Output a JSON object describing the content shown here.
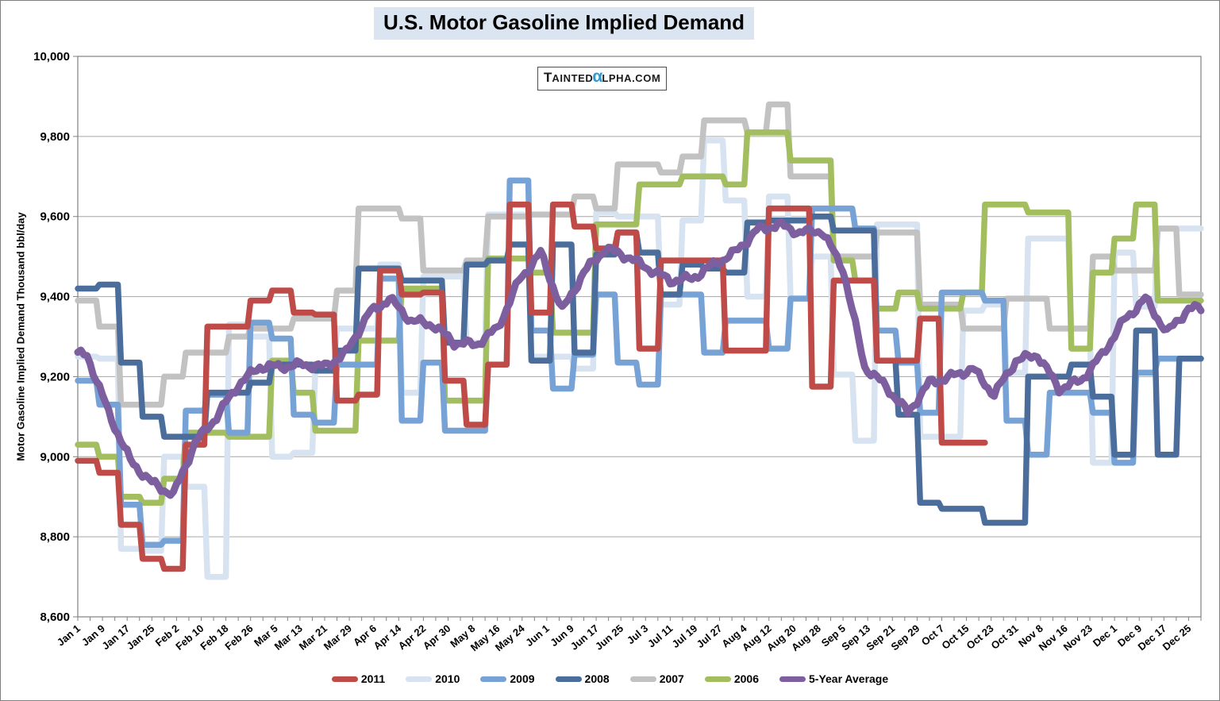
{
  "title": "U.S. Motor Gasoline Implied Demand",
  "watermark": {
    "t": "T",
    "ainted": "AINTED",
    "alpha": "α",
    "rest": "LPHA.COM"
  },
  "y_axis": {
    "title": "Motor Gasoline Implied Demand Thousand bbl/day",
    "tick_labels": [
      "10,000",
      "9,800",
      "9,600",
      "9,400",
      "9,200",
      "9,000",
      "8,800",
      "8,600"
    ],
    "max": 10000,
    "min": 8600,
    "step": 200
  },
  "x_axis": {
    "tick_labels": [
      "Jan 1",
      "Jan 9",
      "Jan 17",
      "Jan 25",
      "Feb 2",
      "Feb 10",
      "Feb 18",
      "Feb 26",
      "Mar 5",
      "Mar 13",
      "Mar 21",
      "Mar 29",
      "Apr 6",
      "Apr 14",
      "Apr 22",
      "Apr 30",
      "May 8",
      "May 16",
      "May 24",
      "Jun 1",
      "Jun 9",
      "Jun 17",
      "Jun 25",
      "Jul 3",
      "Jul 11",
      "Jul 19",
      "Jul 27",
      "Aug 4",
      "Aug 12",
      "Aug 20",
      "Aug 28",
      "Sep 5",
      "Sep 13",
      "Sep 21",
      "Sep 29",
      "Oct 7",
      "Oct 15",
      "Oct 23",
      "Oct 31",
      "Nov 8",
      "Nov 16",
      "Nov 23",
      "Dec 1",
      "Dec 9",
      "Dec 17",
      "Dec 25"
    ],
    "label_interval_days": 8,
    "minor_tick_interval_days": 4
  },
  "colors": {
    "grid": "#a6a6a6",
    "frame": "#808080",
    "title_bg": "#dbe5f1",
    "watermark_alpha": "#2f97d4"
  },
  "chart_data": {
    "type": "line",
    "title": "U.S. Motor Gasoline Implied Demand",
    "ylabel": "Motor Gasoline Implied Demand Thousand bbl/day",
    "ylim": [
      8600,
      10000
    ],
    "grid": "horizontal",
    "legend_position": "bottom",
    "x_description": "Days Jan 1 - Dec 31; weekly values held constant (step lines), estimated from pixels",
    "draw_order": [
      "2010",
      "2007",
      "2006",
      "2009",
      "2008",
      "2011",
      "5-Year Average"
    ],
    "series": [
      {
        "name": "2011",
        "color": "#be4b48",
        "style": "step",
        "line_width": 7.5,
        "weekly_values": [
          8990,
          8960,
          8830,
          8745,
          8720,
          9030,
          9325,
          9325,
          9390,
          9415,
          9360,
          9355,
          9140,
          9155,
          9465,
          9405,
          9410,
          9190,
          9080,
          9230,
          9630,
          9360,
          9630,
          9575,
          9520,
          9560,
          9270,
          9490,
          9490,
          9490,
          9265,
          9265,
          9620,
          9620,
          9175,
          9440,
          9440,
          9240,
          9240,
          9345,
          9035,
          9035
        ]
      },
      {
        "name": "2010",
        "color": "#d7e3f0",
        "style": "step",
        "line_width": 7.5,
        "weekly_values": [
          9250,
          9245,
          8770,
          8765,
          9000,
          8925,
          8700,
          9330,
          9300,
          9000,
          9010,
          9220,
          9320,
          9320,
          9480,
          9160,
          9450,
          9450,
          9285,
          9605,
          9605,
          9250,
          9250,
          9220,
          9610,
          9600,
          9600,
          9380,
          9590,
          9790,
          9640,
          9400,
          9650,
          9395,
          9500,
          9205,
          9040,
          9580,
          9580,
          9050,
          9050,
          9365,
          9380,
          9210,
          9545,
          9545,
          9320,
          8985,
          9510,
          9375,
          9570,
          9570
        ]
      },
      {
        "name": "2009",
        "color": "#77a2d6",
        "style": "step",
        "line_width": 7.5,
        "weekly_values": [
          9190,
          9130,
          8880,
          8780,
          8790,
          9115,
          9155,
          9060,
          9335,
          9295,
          9105,
          9085,
          9230,
          9230,
          9445,
          9090,
          9235,
          9065,
          9065,
          9230,
          9690,
          9315,
          9170,
          9255,
          9405,
          9235,
          9180,
          9405,
          9405,
          9260,
          9340,
          9340,
          9270,
          9395,
          9620,
          9620,
          9570,
          9315,
          9235,
          9110,
          9410,
          9410,
          9390,
          9090,
          9005,
          9160,
          9160,
          9110,
          8985,
          9210,
          9245,
          9245
        ]
      },
      {
        "name": "2008",
        "color": "#4a6d9b",
        "style": "step",
        "line_width": 7.5,
        "weekly_values": [
          9420,
          9430,
          9235,
          9100,
          9050,
          9050,
          9160,
          9160,
          9185,
          9230,
          9230,
          9215,
          9265,
          9470,
          9470,
          9440,
          9440,
          9285,
          9480,
          9490,
          9530,
          9240,
          9530,
          9260,
          9505,
          9560,
          9510,
          9405,
          9480,
          9470,
          9460,
          9585,
          9590,
          9590,
          9600,
          9565,
          9565,
          9240,
          9105,
          8885,
          8870,
          8870,
          8835,
          8835,
          9200,
          9200,
          9230,
          9150,
          9005,
          9315,
          9005,
          9245
        ]
      },
      {
        "name": "2007",
        "color": "#c3c2c2",
        "style": "step",
        "line_width": 7.5,
        "weekly_values": [
          9390,
          9325,
          9130,
          9130,
          9200,
          9260,
          9260,
          9300,
          9320,
          9320,
          9345,
          9345,
          9415,
          9620,
          9620,
          9595,
          9465,
          9465,
          9490,
          9600,
          9600,
          9605,
          9605,
          9650,
          9620,
          9730,
          9730,
          9710,
          9750,
          9840,
          9840,
          9810,
          9880,
          9700,
          9700,
          9500,
          9500,
          9560,
          9560,
          9380,
          9380,
          9320,
          9320,
          9395,
          9395,
          9320,
          9320,
          9500,
          9465,
          9465,
          9570,
          9405
        ]
      },
      {
        "name": "2006",
        "color": "#a2be5f",
        "style": "step",
        "line_width": 7.5,
        "weekly_values": [
          9030,
          9000,
          8900,
          8885,
          8945,
          9060,
          9060,
          9050,
          9050,
          9240,
          9160,
          9065,
          9065,
          9290,
          9290,
          9420,
          9420,
          9140,
          9140,
          9495,
          9495,
          9460,
          9310,
          9310,
          9580,
          9580,
          9680,
          9680,
          9700,
          9700,
          9680,
          9810,
          9810,
          9740,
          9740,
          9490,
          9440,
          9370,
          9410,
          9370,
          9370,
          9410,
          9630,
          9630,
          9610,
          9610,
          9270,
          9460,
          9545,
          9630,
          9390,
          9390
        ]
      },
      {
        "name": "5-Year Average",
        "color": "#7d5fa0",
        "style": "smooth",
        "line_width": 9,
        "weekly_values": [
          9255,
          9110,
          8990,
          8935,
          8905,
          9035,
          9100,
          9180,
          9225,
          9225,
          9230,
          9225,
          9260,
          9355,
          9395,
          9340,
          9330,
          9285,
          9280,
          9320,
          9440,
          9510,
          9365,
          9460,
          9520,
          9500,
          9470,
          9440,
          9445,
          9480,
          9510,
          9565,
          9580,
          9560,
          9565,
          9470,
          9225,
          9175,
          9110,
          9185,
          9200,
          9220,
          9155,
          9240,
          9255,
          9170,
          9190,
          9255,
          9340,
          9395,
          9310,
          9370
        ]
      }
    ]
  }
}
